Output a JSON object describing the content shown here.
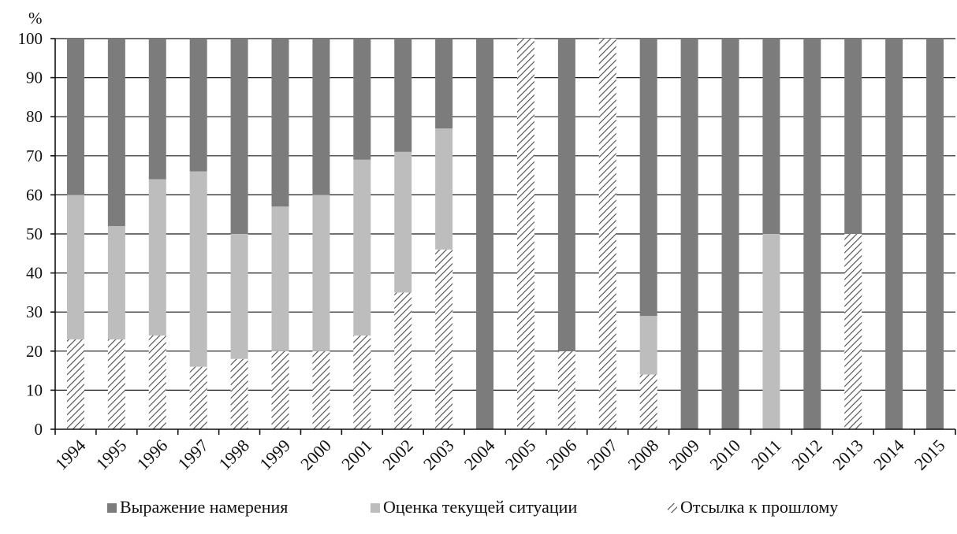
{
  "chart_data": {
    "type": "bar",
    "stacked": true,
    "percent": true,
    "title": "",
    "xlabel": "",
    "ylabel": "%",
    "ylim": [
      0,
      100
    ],
    "yticks": [
      0,
      10,
      20,
      30,
      40,
      50,
      60,
      70,
      80,
      90,
      100
    ],
    "grid": true,
    "legend_position": "bottom",
    "categories": [
      "1994",
      "1995",
      "1996",
      "1997",
      "1998",
      "1999",
      "2000",
      "2001",
      "2002",
      "2003",
      "2004",
      "2005",
      "2006",
      "2007",
      "2008",
      "2009",
      "2010",
      "2011",
      "2012",
      "2013",
      "2014",
      "2015"
    ],
    "series": [
      {
        "name": "Отсылка к прошлому",
        "pattern": "hatch",
        "color": "#9a9a9a",
        "values": [
          23,
          23,
          24,
          16,
          18,
          20,
          20,
          24,
          35,
          46,
          0,
          100,
          20,
          100,
          14,
          0,
          0,
          0,
          0,
          50,
          0,
          0
        ]
      },
      {
        "name": "Оценка текущей ситуации",
        "pattern": "solid",
        "color": "#bdbdbd",
        "values": [
          37,
          29,
          40,
          50,
          32,
          37,
          40,
          45,
          36,
          31,
          0,
          0,
          0,
          0,
          15,
          0,
          0,
          50,
          0,
          0,
          0,
          0
        ]
      },
      {
        "name": "Выражение намерения",
        "pattern": "solid",
        "color": "#7c7c7c",
        "values": [
          40,
          48,
          36,
          34,
          50,
          43,
          40,
          31,
          29,
          23,
          100,
          0,
          80,
          0,
          71,
          100,
          100,
          50,
          100,
          50,
          100,
          100
        ]
      }
    ],
    "legend_order": [
      "Выражение намерения",
      "Оценка текущей ситуации",
      "Отсылка к прошлому"
    ]
  }
}
